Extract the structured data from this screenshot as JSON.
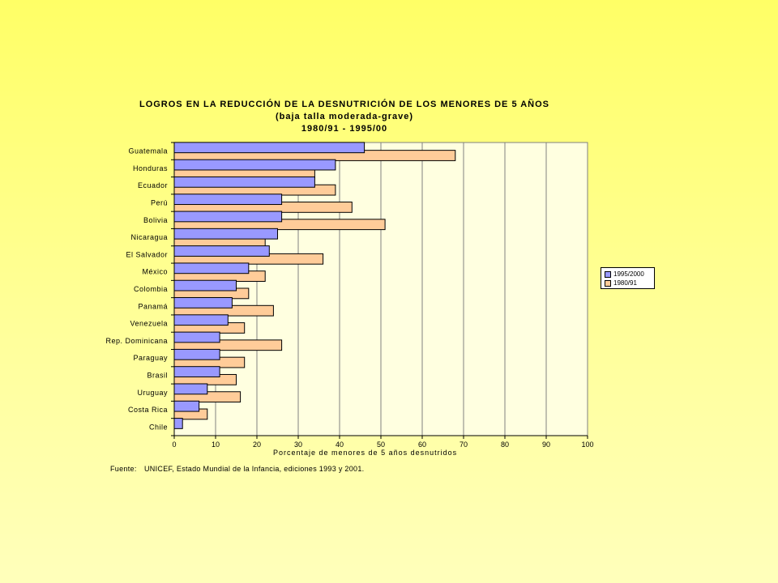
{
  "chart_data": {
    "type": "bar",
    "orientation": "horizontal",
    "title_lines": [
      "LOGROS EN LA REDUCCIÓN DE LA DESNUTRICIÓN DE LOS MENORES DE 5 AÑOS",
      "(baja talla moderada-grave)",
      "1980/91 - 1995/00"
    ],
    "categories": [
      "Guatemala",
      "Honduras",
      "Ecuador",
      "Perú",
      "Bolivia",
      "Nicaragua",
      "El Salvador",
      "México",
      "Colombia",
      "Panamá",
      "Venezuela",
      "Rep. Dominicana",
      "Paraguay",
      "Brasil",
      "Uruguay",
      "Costa Rica",
      "Chile"
    ],
    "series": [
      {
        "name": "1995/2000",
        "color": "#9999ff",
        "values": [
          46,
          39,
          34,
          26,
          26,
          25,
          23,
          18,
          15,
          14,
          13,
          11,
          11,
          11,
          8,
          6,
          2
        ]
      },
      {
        "name": "1980/91",
        "color": "#ffcc99",
        "values": [
          68,
          34,
          39,
          43,
          51,
          22,
          36,
          22,
          18,
          24,
          17,
          26,
          17,
          15,
          16,
          8,
          null
        ]
      }
    ],
    "xlabel": "Porcentaje de menores de 5 años desnutridos",
    "xlim": [
      0,
      100
    ],
    "x_ticks": [
      0,
      10,
      20,
      30,
      40,
      50,
      60,
      70,
      80,
      90,
      100
    ],
    "grid": true,
    "legend_position": "right",
    "plot_background": "#ffffe0"
  },
  "source": {
    "prefix": "Fuente:",
    "text": "UNICEF, Estado Mundial de la Infancia, ediciones 1993 y 2001."
  }
}
